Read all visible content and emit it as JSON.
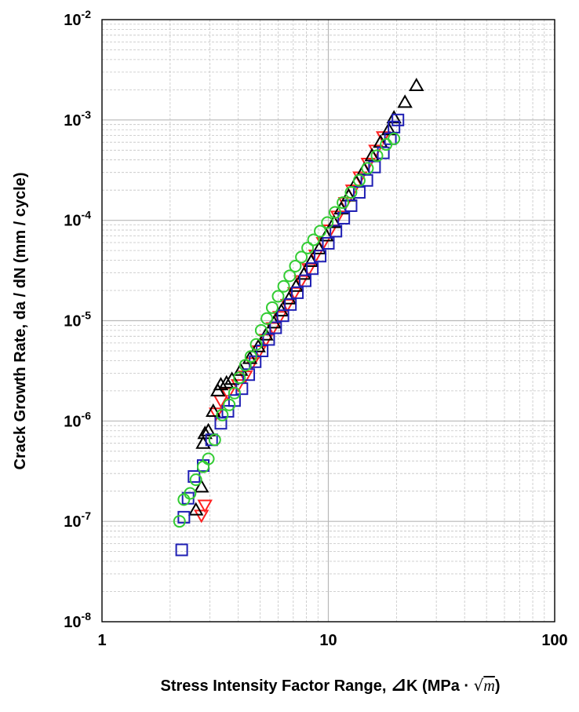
{
  "chart_data": {
    "type": "scatter",
    "title": "",
    "xlabel": "Stress Intensity Factor Range, ⊿K (MPa · √m)",
    "xlabel_parts": {
      "prefix": "Stress Intensity Factor Range, ",
      "symbol": "⊿",
      "main": "K (MPa · ",
      "radical": "√",
      "m": "m",
      "close": ")"
    },
    "ylabel": "Crack Growth Rate, da / dN (mm / cycle)",
    "x_scale": "log",
    "y_scale": "log",
    "xlim": [
      1,
      100
    ],
    "ylim": [
      1e-08,
      0.01
    ],
    "x_ticks": [
      {
        "v": 1,
        "label": "1"
      },
      {
        "v": 10,
        "label": "10"
      },
      {
        "v": 100,
        "label": "100"
      }
    ],
    "y_ticks": [
      {
        "v": 1e-08,
        "base": "10",
        "exp": "-8"
      },
      {
        "v": 1e-07,
        "base": "10",
        "exp": "-7"
      },
      {
        "v": 1e-06,
        "base": "10",
        "exp": "-6"
      },
      {
        "v": 1e-05,
        "base": "10",
        "exp": "-5"
      },
      {
        "v": 0.0001,
        "base": "10",
        "exp": "-4"
      },
      {
        "v": 0.001,
        "base": "10",
        "exp": "-3"
      },
      {
        "v": 0.01,
        "base": "10",
        "exp": "-2"
      }
    ],
    "grid": "major solid, minor dashed",
    "legend": "none",
    "series": [
      {
        "name": "red-down-triangle",
        "marker": "triangle-down",
        "color": "#ff2020",
        "points": [
          [
            2.75,
            1.15e-07
          ],
          [
            2.85,
            1.45e-07
          ],
          [
            3.2,
            1.2e-06
          ],
          [
            3.35,
            1.6e-06
          ],
          [
            3.6,
            1.9e-06
          ],
          [
            4.0,
            2.3e-06
          ],
          [
            4.3,
            2.8e-06
          ],
          [
            4.6,
            3.8e-06
          ],
          [
            4.95,
            5e-06
          ],
          [
            5.3,
            6.5e-06
          ],
          [
            5.7,
            8.5e-06
          ],
          [
            6.1,
            1.1e-05
          ],
          [
            6.6,
            1.45e-05
          ],
          [
            7.1,
            1.9e-05
          ],
          [
            7.6,
            2.5e-05
          ],
          [
            8.2,
            3.3e-05
          ],
          [
            8.8,
            4.5e-05
          ],
          [
            9.5,
            6e-05
          ],
          [
            10.2,
            8e-05
          ],
          [
            11.0,
            0.00011
          ],
          [
            11.9,
            0.00015
          ],
          [
            12.8,
            0.0002
          ],
          [
            13.8,
            0.00027
          ],
          [
            15.0,
            0.00037
          ],
          [
            16.2,
            0.0005
          ],
          [
            17.5,
            0.00068
          ]
        ]
      },
      {
        "name": "black-up-triangle",
        "marker": "triangle-up",
        "color": "#000000",
        "points": [
          [
            2.6,
            1.3e-07
          ],
          [
            2.75,
            2.2e-07
          ],
          [
            2.8,
            6e-07
          ],
          [
            2.85,
            7.5e-07
          ],
          [
            2.95,
            8e-07
          ],
          [
            3.1,
            1.25e-06
          ],
          [
            3.25,
            2e-06
          ],
          [
            3.35,
            2.3e-06
          ],
          [
            3.55,
            2.4e-06
          ],
          [
            3.75,
            2.6e-06
          ],
          [
            4.1,
            3.2e-06
          ],
          [
            4.5,
            4.2e-06
          ],
          [
            4.9,
            5.5e-06
          ],
          [
            5.3,
            7.2e-06
          ],
          [
            5.75,
            9.5e-06
          ],
          [
            6.2,
            1.25e-05
          ],
          [
            6.7,
            1.65e-05
          ],
          [
            7.2,
            2.2e-05
          ],
          [
            7.8,
            2.9e-05
          ],
          [
            8.4,
            3.9e-05
          ],
          [
            9.1,
            5.2e-05
          ],
          [
            9.8,
            7e-05
          ],
          [
            10.6,
            9.5e-05
          ],
          [
            11.4,
            0.00013
          ],
          [
            12.3,
            0.000175
          ],
          [
            13.3,
            0.00024
          ],
          [
            14.4,
            0.00032
          ],
          [
            15.6,
            0.00044
          ],
          [
            17.0,
            0.0006
          ],
          [
            18.5,
            0.0008
          ],
          [
            19.5,
            0.00105
          ],
          [
            21.8,
            0.0015
          ],
          [
            24.5,
            0.0022
          ]
        ]
      },
      {
        "name": "blue-square",
        "marker": "square",
        "color": "#1f1fb4",
        "points": [
          [
            2.25,
            5.2e-08
          ],
          [
            2.3,
            1.1e-07
          ],
          [
            2.4,
            1.7e-07
          ],
          [
            2.55,
            2.8e-07
          ],
          [
            2.8,
            3.6e-07
          ],
          [
            3.05,
            6.5e-07
          ],
          [
            3.35,
            9.5e-07
          ],
          [
            3.6,
            1.25e-06
          ],
          [
            3.85,
            1.6e-06
          ],
          [
            4.15,
            2.1e-06
          ],
          [
            4.45,
            2.9e-06
          ],
          [
            4.75,
            3.9e-06
          ],
          [
            5.1,
            5e-06
          ],
          [
            5.45,
            6.5e-06
          ],
          [
            5.85,
            8.5e-06
          ],
          [
            6.3,
            1.12e-05
          ],
          [
            6.8,
            1.45e-05
          ],
          [
            7.3,
            1.9e-05
          ],
          [
            7.9,
            2.5e-05
          ],
          [
            8.5,
            3.3e-05
          ],
          [
            9.2,
            4.4e-05
          ],
          [
            10.0,
            5.9e-05
          ],
          [
            10.8,
            7.8e-05
          ],
          [
            11.7,
            0.000105
          ],
          [
            12.6,
            0.00014
          ],
          [
            13.7,
            0.00019
          ],
          [
            14.8,
            0.00025
          ],
          [
            16.0,
            0.00034
          ],
          [
            17.5,
            0.00047
          ],
          [
            18.8,
            0.00065
          ],
          [
            19.5,
            0.00085
          ],
          [
            20.3,
            0.001
          ]
        ]
      },
      {
        "name": "green-circle",
        "marker": "circle",
        "color": "#33cc33",
        "points": [
          [
            2.2,
            1e-07
          ],
          [
            2.3,
            1.65e-07
          ],
          [
            2.45,
            1.9e-07
          ],
          [
            2.6,
            2.6e-07
          ],
          [
            2.8,
            3.5e-07
          ],
          [
            2.95,
            4.2e-07
          ],
          [
            3.15,
            6.5e-07
          ],
          [
            3.4,
            1.15e-06
          ],
          [
            3.65,
            1.45e-06
          ],
          [
            3.85,
            1.9e-06
          ],
          [
            4.05,
            2.7e-06
          ],
          [
            4.3,
            3.6e-06
          ],
          [
            4.55,
            4.4e-06
          ],
          [
            4.8,
            5.8e-06
          ],
          [
            5.05,
            8e-06
          ],
          [
            5.35,
            1.05e-05
          ],
          [
            5.65,
            1.35e-05
          ],
          [
            6.0,
            1.75e-05
          ],
          [
            6.35,
            2.2e-05
          ],
          [
            6.75,
            2.8e-05
          ],
          [
            7.15,
            3.5e-05
          ],
          [
            7.6,
            4.3e-05
          ],
          [
            8.1,
            5.3e-05
          ],
          [
            8.6,
            6.4e-05
          ],
          [
            9.2,
            7.8e-05
          ],
          [
            9.9,
            9.5e-05
          ],
          [
            10.7,
            0.00012
          ],
          [
            11.6,
            0.00015
          ],
          [
            12.6,
            0.00019
          ],
          [
            13.7,
            0.00025
          ],
          [
            14.9,
            0.00033
          ],
          [
            16.4,
            0.00044
          ],
          [
            18.0,
            0.00057
          ],
          [
            19.5,
            0.00065
          ]
        ]
      }
    ]
  }
}
